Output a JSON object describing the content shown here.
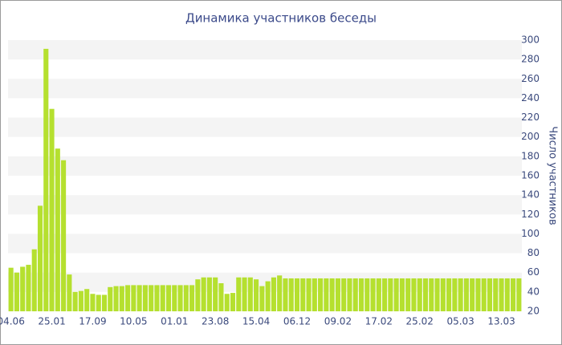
{
  "chart_data": {
    "type": "bar",
    "title": "Динамика участников беседы",
    "y_axis_label": "Число участников",
    "color": "#b5e02f",
    "grid": true,
    "categories": [
      "04.06",
      null,
      null,
      null,
      null,
      null,
      null,
      "25.01",
      null,
      null,
      null,
      null,
      null,
      null,
      "17.09",
      null,
      null,
      null,
      null,
      null,
      null,
      "10.05",
      null,
      null,
      null,
      null,
      null,
      null,
      "01.01",
      null,
      null,
      null,
      null,
      null,
      null,
      "23.08",
      null,
      null,
      null,
      null,
      null,
      null,
      "15.04",
      null,
      null,
      null,
      null,
      null,
      null,
      "06.12",
      null,
      null,
      null,
      null,
      null,
      null,
      "09.02",
      null,
      null,
      null,
      null,
      null,
      null,
      "17.02",
      null,
      null,
      null,
      null,
      null,
      null,
      "25.02",
      null,
      null,
      null,
      null,
      null,
      null,
      "05.03",
      null,
      null,
      null,
      null,
      null,
      null,
      "13.03",
      null,
      null,
      null
    ],
    "values": [
      65,
      60,
      66,
      68,
      84,
      129,
      291,
      229,
      188,
      176,
      58,
      40,
      41,
      43,
      38,
      37,
      37,
      45,
      46,
      46,
      47,
      47,
      47,
      47,
      47,
      47,
      47,
      47,
      47,
      47,
      47,
      47,
      53,
      55,
      55,
      55,
      49,
      38,
      39,
      55,
      55,
      55,
      53,
      46,
      51,
      55,
      57,
      54,
      54,
      54,
      54,
      54,
      54,
      54,
      54,
      54,
      54,
      54,
      54,
      54,
      54,
      54,
      54,
      54,
      54,
      54,
      54,
      54,
      54,
      54,
      54,
      54,
      54,
      54,
      54,
      54,
      54,
      54,
      54,
      54,
      54,
      54,
      54,
      54,
      54,
      54,
      54,
      54
    ],
    "ylim": [
      20,
      300
    ],
    "yticks": [
      20,
      40,
      60,
      80,
      100,
      120,
      140,
      160,
      180,
      200,
      220,
      240,
      260,
      280,
      300
    ]
  }
}
